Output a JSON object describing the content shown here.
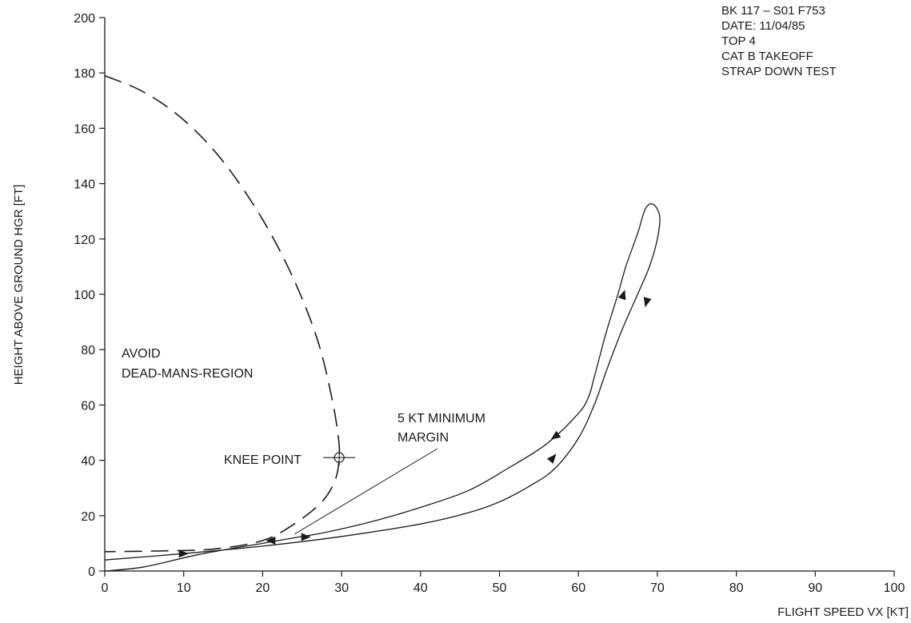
{
  "info_block": [
    "BK 117 – S01   F753",
    "DATE: 11/04/85",
    "TOP 4",
    "CAT B TAKEOFF",
    "STRAP DOWN TEST"
  ],
  "chart_data": {
    "type": "line",
    "title": "",
    "xlabel": "FLIGHT SPEED VX [KT]",
    "ylabel": "HEIGHT ABOVE GROUND HGR [FT]",
    "xlim": [
      0,
      100
    ],
    "ylim": [
      0,
      200
    ],
    "x_ticks": [
      "0",
      "10",
      "20",
      "30",
      "40",
      "50",
      "60",
      "70",
      "80",
      "90",
      "100"
    ],
    "y_ticks": [
      "0",
      "20",
      "40",
      "60",
      "80",
      "100",
      "120",
      "140",
      "160",
      "180",
      "200"
    ],
    "grid": false,
    "legend": "none",
    "annotations": {
      "avoid_line1": "AVOID",
      "avoid_line2": "DEAD-MANS-REGION",
      "margin_line1": "5 KT MINIMUM",
      "margin_line2": "MARGIN",
      "knee": "KNEE POINT"
    },
    "series": [
      {
        "style": "dashed",
        "points": [
          [
            0,
            179
          ],
          [
            5,
            173
          ],
          [
            10,
            163
          ],
          [
            15,
            148
          ],
          [
            20,
            127
          ],
          [
            24,
            105
          ],
          [
            27,
            83
          ],
          [
            28.8,
            62
          ],
          [
            29.6,
            48
          ],
          [
            29.7,
            41
          ],
          [
            29.2,
            33
          ],
          [
            27.5,
            25
          ],
          [
            24,
            17
          ],
          [
            20,
            11
          ],
          [
            14,
            8
          ],
          [
            8,
            7.3
          ],
          [
            0,
            7
          ]
        ]
      },
      {
        "style": "solid",
        "points": [
          [
            0,
            4
          ],
          [
            10,
            6.3
          ],
          [
            20,
            9
          ],
          [
            30,
            12.5
          ],
          [
            40,
            17
          ],
          [
            46,
            21
          ],
          [
            50,
            25
          ],
          [
            54,
            31
          ],
          [
            57,
            37
          ],
          [
            60,
            48
          ],
          [
            62,
            60
          ],
          [
            63.5,
            72
          ],
          [
            65.5,
            87
          ],
          [
            67.5,
            100
          ],
          [
            69,
            110
          ],
          [
            70,
            120
          ],
          [
            70.3,
            128
          ],
          [
            69.5,
            132.5
          ],
          [
            68.5,
            131
          ],
          [
            67.5,
            122
          ],
          [
            66,
            110
          ],
          [
            65,
            100
          ],
          [
            63.5,
            86
          ],
          [
            62,
            70
          ],
          [
            61.3,
            63
          ],
          [
            60,
            57
          ],
          [
            56,
            46
          ],
          [
            51,
            37
          ],
          [
            46,
            29
          ],
          [
            40,
            23
          ],
          [
            34,
            18
          ],
          [
            28,
            14
          ],
          [
            24,
            12
          ],
          [
            20,
            10
          ],
          [
            12,
            6
          ],
          [
            5,
            1.5
          ],
          [
            0,
            0
          ]
        ]
      }
    ],
    "direction_arrows": [
      {
        "x": 10,
        "y": 6.3,
        "dir": "right"
      },
      {
        "x": 25.5,
        "y": 12.3,
        "dir": "right"
      },
      {
        "x": 21,
        "y": 11,
        "dir": "left"
      },
      {
        "x": 56.8,
        "y": 41,
        "dir": "up-right"
      },
      {
        "x": 65.7,
        "y": 100,
        "dir": "up"
      },
      {
        "x": 68.6,
        "y": 97,
        "dir": "down"
      },
      {
        "x": 57,
        "y": 48.5,
        "dir": "down-left"
      }
    ],
    "knee_point": {
      "x": 29.7,
      "y": 41
    }
  }
}
